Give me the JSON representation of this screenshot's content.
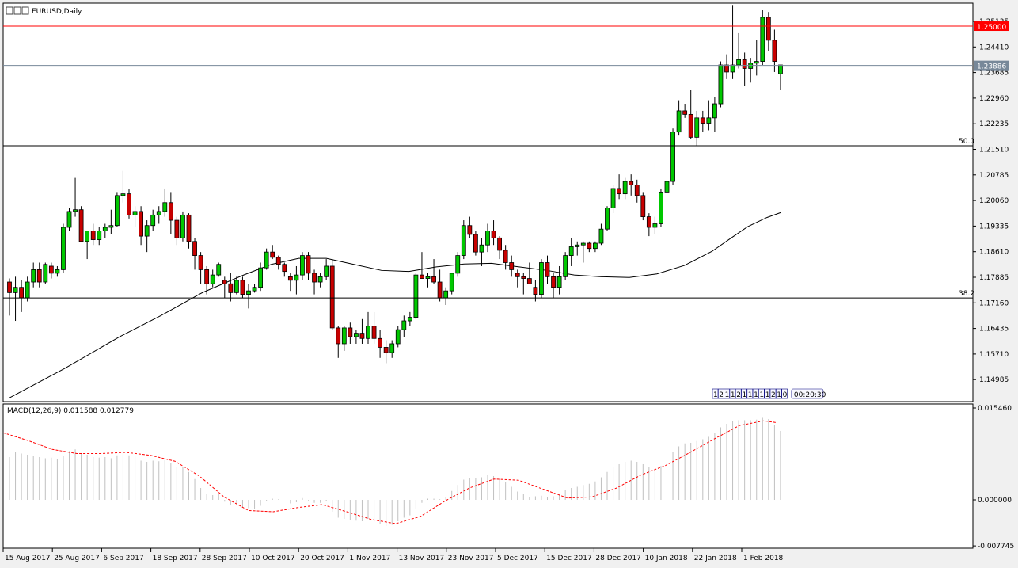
{
  "window": {
    "symbol_title": "EURUSD,Daily"
  },
  "price_scale": {
    "ticks": [
      "1.25135",
      "1.24410",
      "1.23685",
      "1.22960",
      "1.22235",
      "1.21510",
      "1.20785",
      "1.20060",
      "1.19335",
      "1.18610",
      "1.17885",
      "1.17160",
      "1.16435",
      "1.15710",
      "1.14985"
    ]
  },
  "price_lines": {
    "resistance": {
      "value": "1.25000",
      "color": "#ff0000"
    },
    "current": {
      "value": "1.23886",
      "color": "#778899"
    },
    "fib_50": {
      "label": "50.0",
      "value": 1.2161
    },
    "fib_382": {
      "label": "38.2",
      "value": 1.173
    }
  },
  "time_scale": {
    "labels": [
      "15 Aug 2017",
      "25 Aug 2017",
      "6 Sep 2017",
      "18 Sep 2017",
      "28 Sep 2017",
      "10 Oct 2017",
      "20 Oct 2017",
      "1 Nov 2017",
      "13 Nov 2017",
      "23 Nov 2017",
      "5 Dec 2017",
      "15 Dec 2017",
      "28 Dec 2017",
      "10 Jan 2018",
      "22 Jan 2018",
      "1 Feb 2018"
    ]
  },
  "countdown": {
    "digits": [
      "1",
      "2",
      "1",
      "1",
      "2",
      "1",
      "1",
      "1",
      "1",
      "1",
      "2",
      "1",
      "0"
    ],
    "timer": "00:20:30"
  },
  "macd": {
    "label": "MACD(12,26,9) 0.011588 0.012779",
    "ticks": [
      "0.015460",
      "0.000000",
      "-0.007745"
    ],
    "signal_color": "#ff0000",
    "histogram_color": "#c0c0c0"
  },
  "chart_data": {
    "type": "candlestick",
    "symbol": "EURUSD",
    "timeframe": "Daily",
    "up_color": "#00c800",
    "down_color": "#c80000",
    "ylim": [
      1.144,
      1.2565
    ],
    "moving_average_color": "#000000",
    "candles": [
      [
        1.1775,
        1.1785,
        1.168,
        1.1745
      ],
      [
        1.1745,
        1.179,
        1.1665,
        1.176
      ],
      [
        1.176,
        1.178,
        1.169,
        1.173
      ],
      [
        1.173,
        1.179,
        1.172,
        1.1775
      ],
      [
        1.1775,
        1.183,
        1.176,
        1.181
      ],
      [
        1.181,
        1.183,
        1.176,
        1.1775
      ],
      [
        1.1775,
        1.183,
        1.177,
        1.1825
      ],
      [
        1.182,
        1.183,
        1.1785,
        1.18
      ],
      [
        1.18,
        1.182,
        1.179,
        1.181
      ],
      [
        1.181,
        1.194,
        1.18,
        1.193
      ],
      [
        1.193,
        1.1985,
        1.192,
        1.1975
      ],
      [
        1.1975,
        1.207,
        1.196,
        1.198
      ],
      [
        1.198,
        1.199,
        1.19,
        1.189
      ],
      [
        1.189,
        1.192,
        1.184,
        1.192
      ],
      [
        1.192,
        1.194,
        1.188,
        1.1895
      ],
      [
        1.1895,
        1.193,
        1.188,
        1.192
      ],
      [
        1.192,
        1.194,
        1.19,
        1.193
      ],
      [
        1.193,
        1.198,
        1.191,
        1.1935
      ],
      [
        1.1935,
        1.203,
        1.193,
        1.202
      ],
      [
        1.202,
        1.209,
        1.2,
        1.2025
      ],
      [
        1.2025,
        1.204,
        1.1955,
        1.1965
      ],
      [
        1.1965,
        1.199,
        1.193,
        1.1975
      ],
      [
        1.1975,
        1.199,
        1.188,
        1.1905
      ],
      [
        1.1905,
        1.195,
        1.186,
        1.1935
      ],
      [
        1.1935,
        1.198,
        1.192,
        1.1965
      ],
      [
        1.1965,
        1.199,
        1.194,
        1.1975
      ],
      [
        1.1975,
        1.204,
        1.196,
        1.2
      ],
      [
        1.2,
        1.203,
        1.191,
        1.195
      ],
      [
        1.195,
        1.196,
        1.188,
        1.19
      ],
      [
        1.19,
        1.1975,
        1.189,
        1.1965
      ],
      [
        1.1965,
        1.197,
        1.187,
        1.189
      ],
      [
        1.189,
        1.19,
        1.181,
        1.185
      ],
      [
        1.185,
        1.186,
        1.177,
        1.181
      ],
      [
        1.181,
        1.182,
        1.174,
        1.177
      ],
      [
        1.177,
        1.181,
        1.176,
        1.1795
      ],
      [
        1.1795,
        1.183,
        1.179,
        1.1825
      ],
      [
        1.178,
        1.179,
        1.173,
        1.177
      ],
      [
        1.177,
        1.18,
        1.172,
        1.1745
      ],
      [
        1.1745,
        1.179,
        1.174,
        1.178
      ],
      [
        1.178,
        1.179,
        1.173,
        1.174
      ],
      [
        1.174,
        1.177,
        1.17,
        1.175
      ],
      [
        1.175,
        1.177,
        1.1745,
        1.176
      ],
      [
        1.176,
        1.183,
        1.175,
        1.1815
      ],
      [
        1.1815,
        1.187,
        1.181,
        1.186
      ],
      [
        1.186,
        1.188,
        1.184,
        1.1845
      ],
      [
        1.1845,
        1.185,
        1.181,
        1.1825
      ],
      [
        1.1825,
        1.183,
        1.179,
        1.1805
      ],
      [
        1.179,
        1.18,
        1.175,
        1.178
      ],
      [
        1.178,
        1.182,
        1.174,
        1.1795
      ],
      [
        1.1795,
        1.186,
        1.178,
        1.185
      ],
      [
        1.185,
        1.186,
        1.178,
        1.18
      ],
      [
        1.18,
        1.181,
        1.174,
        1.1775
      ],
      [
        1.1775,
        1.18,
        1.176,
        1.179
      ],
      [
        1.179,
        1.184,
        1.178,
        1.182
      ],
      [
        1.182,
        1.184,
        1.164,
        1.1645
      ],
      [
        1.1645,
        1.165,
        1.156,
        1.16
      ],
      [
        1.16,
        1.165,
        1.158,
        1.1645
      ],
      [
        1.1645,
        1.166,
        1.16,
        1.162
      ],
      [
        1.162,
        1.164,
        1.16,
        1.163
      ],
      [
        1.163,
        1.167,
        1.16,
        1.1615
      ],
      [
        1.1615,
        1.169,
        1.16,
        1.165
      ],
      [
        1.165,
        1.169,
        1.16,
        1.1615
      ],
      [
        1.1615,
        1.164,
        1.156,
        1.159
      ],
      [
        1.159,
        1.161,
        1.1545,
        1.1575
      ],
      [
        1.1575,
        1.161,
        1.156,
        1.16
      ],
      [
        1.16,
        1.165,
        1.159,
        1.164
      ],
      [
        1.164,
        1.168,
        1.162,
        1.1665
      ],
      [
        1.1665,
        1.169,
        1.165,
        1.1675
      ],
      [
        1.1675,
        1.18,
        1.167,
        1.1795
      ],
      [
        1.1795,
        1.186,
        1.1785,
        1.1785
      ],
      [
        1.1785,
        1.18,
        1.176,
        1.179
      ],
      [
        1.179,
        1.184,
        1.177,
        1.1775
      ],
      [
        1.1775,
        1.181,
        1.172,
        1.173
      ],
      [
        1.173,
        1.176,
        1.171,
        1.175
      ],
      [
        1.175,
        1.18,
        1.174,
        1.18
      ],
      [
        1.18,
        1.186,
        1.179,
        1.185
      ],
      [
        1.185,
        1.195,
        1.184,
        1.1935
      ],
      [
        1.1935,
        1.196,
        1.19,
        1.191
      ],
      [
        1.191,
        1.192,
        1.185,
        1.186
      ],
      [
        1.186,
        1.19,
        1.182,
        1.188
      ],
      [
        1.188,
        1.194,
        1.186,
        1.192
      ],
      [
        1.192,
        1.195,
        1.188,
        1.19
      ],
      [
        1.19,
        1.1905,
        1.184,
        1.1865
      ],
      [
        1.1865,
        1.188,
        1.181,
        1.183
      ],
      [
        1.183,
        1.185,
        1.179,
        1.181
      ],
      [
        1.18,
        1.181,
        1.176,
        1.179
      ],
      [
        1.179,
        1.18,
        1.174,
        1.1785
      ],
      [
        1.1785,
        1.183,
        1.177,
        1.177
      ],
      [
        1.176,
        1.178,
        1.172,
        1.174
      ],
      [
        1.174,
        1.184,
        1.173,
        1.183
      ],
      [
        1.183,
        1.185,
        1.177,
        1.179
      ],
      [
        1.179,
        1.18,
        1.173,
        1.176
      ],
      [
        1.176,
        1.182,
        1.174,
        1.179
      ],
      [
        1.179,
        1.186,
        1.178,
        1.185
      ],
      [
        1.185,
        1.19,
        1.182,
        1.1875
      ],
      [
        1.1875,
        1.189,
        1.185,
        1.188
      ],
      [
        1.188,
        1.189,
        1.183,
        1.1885
      ],
      [
        1.1885,
        1.189,
        1.186,
        1.187
      ],
      [
        1.187,
        1.189,
        1.186,
        1.1885
      ],
      [
        1.1885,
        1.194,
        1.188,
        1.1925
      ],
      [
        1.1925,
        1.199,
        1.192,
        1.1985
      ],
      [
        1.1985,
        1.205,
        1.197,
        1.204
      ],
      [
        1.204,
        1.208,
        1.201,
        1.2025
      ],
      [
        1.2025,
        1.207,
        1.201,
        1.206
      ],
      [
        1.206,
        1.208,
        1.202,
        1.205
      ],
      [
        1.205,
        1.2065,
        1.2,
        1.202
      ],
      [
        1.202,
        1.203,
        1.195,
        1.196
      ],
      [
        1.196,
        1.197,
        1.1905,
        1.193
      ],
      [
        1.193,
        1.196,
        1.191,
        1.194
      ],
      [
        1.194,
        1.204,
        1.193,
        1.203
      ],
      [
        1.203,
        1.209,
        1.202,
        1.206
      ],
      [
        1.206,
        1.221,
        1.205,
        1.22
      ],
      [
        1.22,
        1.229,
        1.219,
        1.226
      ],
      [
        1.226,
        1.228,
        1.224,
        1.225
      ],
      [
        1.225,
        1.232,
        1.218,
        1.2185
      ],
      [
        1.2185,
        1.226,
        1.216,
        1.224
      ],
      [
        1.224,
        1.226,
        1.22,
        1.2225
      ],
      [
        1.2225,
        1.229,
        1.2205,
        1.224
      ],
      [
        1.224,
        1.23,
        1.22,
        1.228
      ],
      [
        1.228,
        1.24,
        1.227,
        1.239
      ],
      [
        1.239,
        1.242,
        1.235,
        1.237
      ],
      [
        1.237,
        1.256,
        1.235,
        1.239
      ],
      [
        1.239,
        1.248,
        1.238,
        1.2405
      ],
      [
        1.2405,
        1.2425,
        1.233,
        1.238
      ],
      [
        1.238,
        1.241,
        1.234,
        1.2395
      ],
      [
        1.2395,
        1.246,
        1.236,
        1.24
      ],
      [
        1.24,
        1.2545,
        1.239,
        1.2525
      ],
      [
        1.2525,
        1.254,
        1.243,
        1.246
      ],
      [
        1.246,
        1.249,
        1.237,
        1.24
      ],
      [
        1.2365,
        1.2385,
        1.232,
        1.239
      ]
    ],
    "moving_average": [
      [
        0,
        1.1447
      ],
      [
        20,
        1.153
      ],
      [
        40,
        1.162
      ],
      [
        55,
        1.168
      ],
      [
        70,
        1.1745
      ],
      [
        85,
        1.1795
      ],
      [
        95,
        1.1825
      ],
      [
        105,
        1.1842
      ],
      [
        115,
        1.1842
      ],
      [
        125,
        1.1825
      ],
      [
        135,
        1.1808
      ],
      [
        145,
        1.1805
      ],
      [
        155,
        1.1818
      ],
      [
        165,
        1.1826
      ],
      [
        175,
        1.1828
      ],
      [
        185,
        1.1818
      ],
      [
        195,
        1.1808
      ],
      [
        205,
        1.1795
      ],
      [
        215,
        1.179
      ],
      [
        225,
        1.1788
      ],
      [
        235,
        1.1798
      ],
      [
        245,
        1.1822
      ],
      [
        255,
        1.1862
      ],
      [
        262,
        1.19
      ],
      [
        268,
        1.1932
      ],
      [
        275,
        1.1958
      ],
      [
        280,
        1.1972
      ]
    ],
    "moving_average_x_units": "pixels-offset-legacy",
    "macd_histogram": [
      0.0072,
      0.008,
      0.0078,
      0.0076,
      0.0074,
      0.0072,
      0.007,
      0.0071,
      0.0069,
      0.0074,
      0.0082,
      0.0085,
      0.0078,
      0.0076,
      0.0072,
      0.0071,
      0.0072,
      0.007,
      0.0075,
      0.0079,
      0.0075,
      0.0073,
      0.0066,
      0.0064,
      0.0066,
      0.0065,
      0.0067,
      0.0062,
      0.0055,
      0.0056,
      0.0047,
      0.0035,
      0.002,
      0.001,
      0.0008,
      0.001,
      -0.0003,
      -0.0008,
      -0.0007,
      -0.0012,
      -0.0014,
      -0.0015,
      -0.001,
      -0.0002,
      0.0002,
      0.0001,
      0.0,
      -0.0006,
      -0.0004,
      0.0003,
      -0.0001,
      -0.0005,
      -0.0005,
      -0.0002,
      -0.002,
      -0.003,
      -0.0032,
      -0.0034,
      -0.0035,
      -0.0036,
      -0.0032,
      -0.0037,
      -0.004,
      -0.0044,
      -0.0042,
      -0.0036,
      -0.003,
      -0.0026,
      -0.0015,
      -0.0005,
      0.0002,
      0.0002,
      0.0001,
      0.0005,
      0.0015,
      0.0025,
      0.0034,
      0.0036,
      0.0036,
      0.0038,
      0.0042,
      0.004,
      0.0035,
      0.003,
      0.0022,
      0.0014,
      0.001,
      0.0005,
      0.0006,
      0.0007,
      0.0005,
      0.0006,
      0.001,
      0.0016,
      0.002,
      0.0022,
      0.0025,
      0.0027,
      0.0031,
      0.0038,
      0.0047,
      0.0055,
      0.006,
      0.0064,
      0.0066,
      0.0064,
      0.006,
      0.0055,
      0.0052,
      0.0057,
      0.0066,
      0.008,
      0.009,
      0.0095,
      0.0096,
      0.0099,
      0.0102,
      0.0106,
      0.0112,
      0.0122,
      0.0128,
      0.0133,
      0.0134,
      0.0134,
      0.0134,
      0.0135,
      0.0138,
      0.0136,
      0.0126,
      0.0116
    ],
    "macd_signal": [
      [
        0,
        0.0113
      ],
      [
        10,
        0.01
      ],
      [
        20,
        0.0085
      ],
      [
        30,
        0.0078
      ],
      [
        40,
        0.0078
      ],
      [
        50,
        0.008
      ],
      [
        60,
        0.0075
      ],
      [
        70,
        0.0065
      ],
      [
        80,
        0.004
      ],
      [
        90,
        0.0005
      ],
      [
        100,
        -0.0018
      ],
      [
        110,
        -0.002
      ],
      [
        120,
        -0.0013
      ],
      [
        130,
        -0.0008
      ],
      [
        140,
        -0.002
      ],
      [
        150,
        -0.0033
      ],
      [
        160,
        -0.004
      ],
      [
        170,
        -0.0028
      ],
      [
        180,
        -0.0002
      ],
      [
        190,
        0.002
      ],
      [
        200,
        0.0035
      ],
      [
        210,
        0.0033
      ],
      [
        220,
        0.0018
      ],
      [
        230,
        0.0003
      ],
      [
        240,
        0.0005
      ],
      [
        250,
        0.002
      ],
      [
        260,
        0.0042
      ],
      [
        270,
        0.0058
      ],
      [
        280,
        0.008
      ],
      [
        290,
        0.0103
      ],
      [
        300,
        0.0125
      ],
      [
        310,
        0.0133
      ],
      [
        315,
        0.013
      ]
    ],
    "macd_x_units": "pixels-offset-legacy",
    "macd_ylim": [
      -0.007745,
      0.01546
    ]
  }
}
